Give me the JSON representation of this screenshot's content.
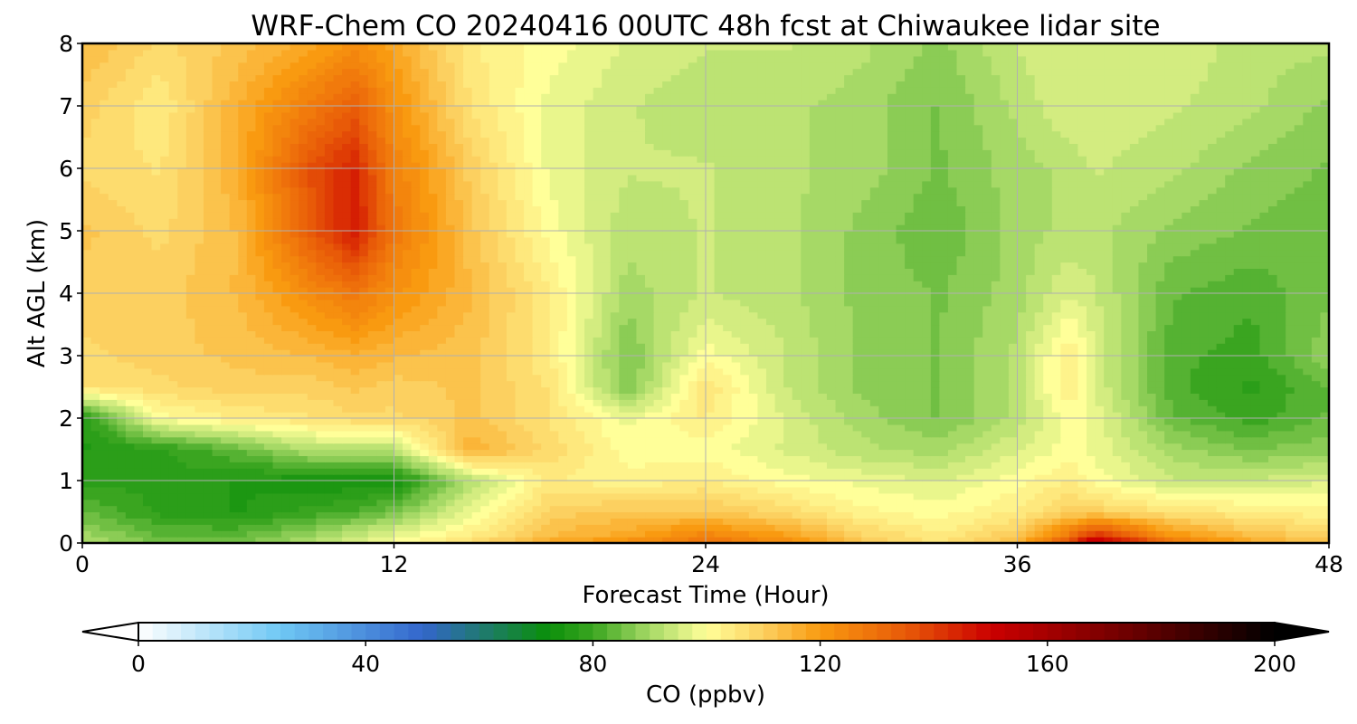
{
  "chart_data": {
    "type": "heatmap",
    "title": "WRF-Chem CO  20240416 00UTC 48h fcst at Chiwaukee lidar site",
    "xlabel": "Forecast Time (Hour)",
    "ylabel": "Alt AGL (km)",
    "xlim": [
      0,
      48
    ],
    "ylim": [
      0,
      8
    ],
    "x_ticks": [
      0,
      12,
      24,
      36,
      48
    ],
    "y_ticks": [
      0,
      1,
      2,
      3,
      4,
      5,
      6,
      7,
      8
    ],
    "grid": true,
    "colorbar": {
      "label": "CO  (ppbv)",
      "range": [
        0,
        200
      ],
      "ticks": [
        0,
        40,
        80,
        120,
        160,
        200
      ],
      "extend": "both",
      "stops": [
        {
          "v": 0,
          "c": "#ffffff"
        },
        {
          "v": 25,
          "c": "#6fc8f4"
        },
        {
          "v": 50,
          "c": "#3366cc"
        },
        {
          "v": 72,
          "c": "#0a8f0a"
        },
        {
          "v": 80,
          "c": "#3aa520"
        },
        {
          "v": 90,
          "c": "#a6d966"
        },
        {
          "v": 100,
          "c": "#ffff99"
        },
        {
          "v": 110,
          "c": "#fcd060"
        },
        {
          "v": 120,
          "c": "#f99a10"
        },
        {
          "v": 135,
          "c": "#e85a08"
        },
        {
          "v": 150,
          "c": "#cc0000"
        },
        {
          "v": 175,
          "c": "#6a0000"
        },
        {
          "v": 200,
          "c": "#000000"
        }
      ]
    },
    "grid_values": {
      "x": [
        0,
        3,
        6,
        9,
        10.5,
        12,
        15,
        18,
        21,
        24,
        27,
        30,
        33,
        36,
        38,
        39,
        42,
        45,
        48
      ],
      "y": [
        0,
        0.1,
        0.5,
        1,
        1.5,
        2,
        2.5,
        3,
        4,
        5,
        6,
        7,
        8
      ],
      "z": [
        [
          92,
          86,
          86,
          92,
          96,
          100,
          108,
          118,
          124,
          130,
          124,
          112,
          106,
          115,
          140,
          160,
          130,
          118,
          112
        ],
        [
          90,
          84,
          84,
          90,
          94,
          98,
          104,
          114,
          118,
          126,
          120,
          110,
          104,
          112,
          130,
          145,
          122,
          114,
          110
        ],
        [
          84,
          78,
          76,
          80,
          82,
          86,
          98,
          110,
          112,
          112,
          108,
          102,
          100,
          104,
          110,
          110,
          106,
          104,
          102
        ],
        [
          78,
          78,
          76,
          74,
          74,
          74,
          92,
          104,
          102,
          104,
          100,
          98,
          96,
          100,
          104,
          100,
          94,
          94,
          96
        ],
        [
          76,
          78,
          84,
          92,
          92,
          92,
          116,
          108,
          100,
          100,
          96,
          92,
          90,
          96,
          100,
          98,
          90,
          86,
          88
        ],
        [
          76,
          100,
          104,
          106,
          108,
          108,
          112,
          106,
          98,
          104,
          96,
          90,
          86,
          92,
          100,
          98,
          84,
          80,
          84
        ],
        [
          106,
          108,
          110,
          110,
          112,
          110,
          112,
          106,
          86,
          106,
          94,
          88,
          86,
          92,
          104,
          96,
          82,
          78,
          84
        ],
        [
          108,
          110,
          112,
          114,
          116,
          114,
          112,
          104,
          86,
          100,
          94,
          88,
          86,
          92,
          104,
          96,
          82,
          80,
          88
        ],
        [
          110,
          110,
          114,
          124,
          128,
          122,
          114,
          104,
          90,
          94,
          92,
          88,
          86,
          90,
          96,
          94,
          84,
          82,
          86
        ],
        [
          112,
          108,
          114,
          136,
          146,
          128,
          112,
          100,
          92,
          94,
          92,
          88,
          84,
          90,
          92,
          92,
          88,
          86,
          84
        ],
        [
          108,
          106,
          116,
          138,
          144,
          126,
          110,
          98,
          94,
          94,
          92,
          90,
          86,
          90,
          92,
          94,
          92,
          88,
          86
        ],
        [
          110,
          104,
          116,
          128,
          134,
          122,
          106,
          98,
          94,
          92,
          92,
          90,
          86,
          92,
          96,
          96,
          94,
          92,
          88
        ],
        [
          114,
          108,
          112,
          118,
          122,
          118,
          104,
          100,
          96,
          94,
          94,
          92,
          88,
          94,
          96,
          96,
          96,
          92,
          92
        ]
      ]
    }
  }
}
